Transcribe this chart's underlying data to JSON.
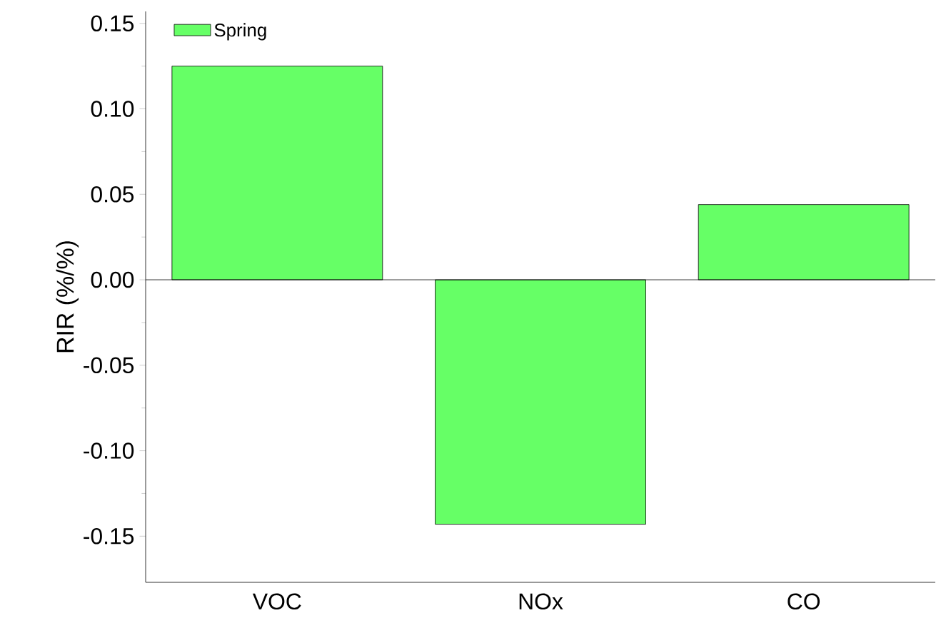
{
  "chart_data": {
    "type": "bar",
    "ylabel": "RIR (%/%)",
    "categories": [
      "VOC",
      "NOx",
      "CO"
    ],
    "series": [
      {
        "name": "Spring",
        "color": "#66ff66",
        "values": [
          0.125,
          -0.143,
          0.044
        ]
      }
    ],
    "ylim": [
      -0.177,
      0.157
    ],
    "yticks": [
      {
        "value": -0.15,
        "label": "-0.15"
      },
      {
        "value": -0.1,
        "label": "-0.10"
      },
      {
        "value": -0.05,
        "label": "-0.05"
      },
      {
        "value": 0,
        "label": "0.00"
      },
      {
        "value": 0.05,
        "label": "0.05"
      },
      {
        "value": 0.1,
        "label": "0.10"
      },
      {
        "value": 0.15,
        "label": "0.15"
      }
    ],
    "ref_lines": [
      {
        "axis": "y",
        "value": 0
      }
    ],
    "legend": "top left",
    "grid": false
  }
}
